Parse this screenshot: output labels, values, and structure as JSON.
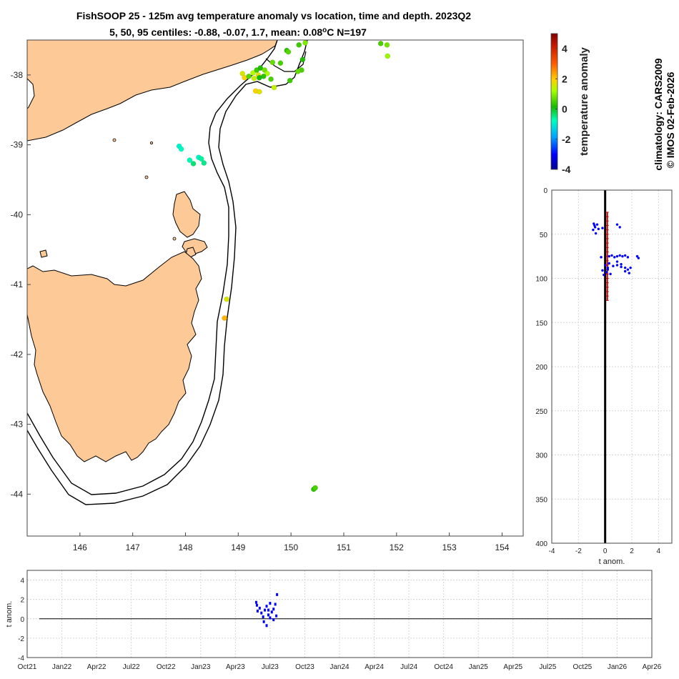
{
  "chart_data": [
    {
      "type": "scatter",
      "name": "map",
      "title": "FishSOOP 25 - 125m avg temperature anomaly vs location, time and depth. 2023Q2",
      "subtitle_prefix": "5, 50, 95 centiles: -0.88, -0.07, 1.7, mean: 0.08",
      "subtitle_degree": "o",
      "subtitle_suffix": "C N=197",
      "xlim": [
        145.0,
        154.4
      ],
      "ylim": [
        -44.6,
        -37.5
      ],
      "xticks": [
        146,
        147,
        148,
        149,
        150,
        151,
        152,
        153,
        154
      ],
      "yticks": [
        -38,
        -39,
        -40,
        -41,
        -42,
        -43,
        -44
      ],
      "colorbar": {
        "label": "temperature anomaly",
        "range": [
          -4,
          5
        ],
        "ticks": [
          4,
          2,
          0,
          -2,
          -4
        ]
      },
      "points": [
        [
          149.08,
          -37.98,
          1.6
        ],
        [
          149.12,
          -38.04,
          1.9
        ],
        [
          149.2,
          -38.02,
          0.6
        ],
        [
          149.28,
          -37.97,
          1.3
        ],
        [
          149.35,
          -37.93,
          0.4
        ],
        [
          149.42,
          -37.9,
          0.2
        ],
        [
          149.5,
          -37.93,
          0.8
        ],
        [
          149.38,
          -38.0,
          1.7
        ],
        [
          149.55,
          -37.98,
          1.2
        ],
        [
          149.48,
          -38.02,
          0.3
        ],
        [
          149.3,
          -38.05,
          1.5
        ],
        [
          149.4,
          -38.04,
          0.1
        ],
        [
          149.62,
          -38.06,
          0.5
        ],
        [
          149.68,
          -38.18,
          1.4
        ],
        [
          149.33,
          -38.23,
          1.9
        ],
        [
          149.4,
          -38.24,
          1.7
        ],
        [
          149.65,
          -37.82,
          0.7
        ],
        [
          149.8,
          -37.83,
          0.5
        ],
        [
          149.92,
          -37.65,
          0.3
        ],
        [
          149.95,
          -37.67,
          0.6
        ],
        [
          150.15,
          -37.57,
          0.4
        ],
        [
          150.27,
          -37.54,
          0.9
        ],
        [
          150.22,
          -37.78,
          0.2
        ],
        [
          150.2,
          -37.93,
          0.5
        ],
        [
          150.13,
          -37.95,
          0.7
        ],
        [
          149.98,
          -38.08,
          0.4
        ],
        [
          151.7,
          -37.55,
          0.5
        ],
        [
          151.82,
          -37.57,
          0.8
        ],
        [
          151.83,
          -37.73,
          1.1
        ],
        [
          147.88,
          -39.02,
          -0.9
        ],
        [
          147.92,
          -39.06,
          -0.8
        ],
        [
          148.08,
          -39.22,
          -0.7
        ],
        [
          148.15,
          -39.27,
          -0.4
        ],
        [
          148.25,
          -39.18,
          -0.9
        ],
        [
          148.3,
          -39.2,
          -0.6
        ],
        [
          148.35,
          -39.26,
          -0.5
        ],
        [
          148.78,
          -41.21,
          1.6
        ],
        [
          148.74,
          -41.48,
          2.2
        ],
        [
          150.43,
          -43.93,
          0.3
        ],
        [
          150.46,
          -43.91,
          0.5
        ]
      ]
    },
    {
      "type": "scatter",
      "name": "depth_profile",
      "xlabel": "t anom.",
      "xlim": [
        -4,
        5
      ],
      "ylim": [
        0,
        400
      ],
      "xticks": [
        -4,
        -2,
        0,
        2,
        4
      ],
      "yticks": [
        0,
        50,
        100,
        150,
        200,
        250,
        300,
        350,
        400
      ],
      "depth_range_bar": [
        25,
        125
      ],
      "points": [
        [
          -0.85,
          38
        ],
        [
          -0.8,
          40
        ],
        [
          -0.75,
          42
        ],
        [
          -0.9,
          45
        ],
        [
          -0.6,
          39
        ],
        [
          -0.5,
          44
        ],
        [
          -0.2,
          43
        ],
        [
          0.9,
          39
        ],
        [
          1.1,
          42
        ],
        [
          -0.7,
          49
        ],
        [
          0.3,
          75
        ],
        [
          0.5,
          74
        ],
        [
          0.7,
          76
        ],
        [
          0.9,
          75
        ],
        [
          1.1,
          74
        ],
        [
          1.3,
          75
        ],
        [
          1.5,
          74
        ],
        [
          1.7,
          76
        ],
        [
          2.4,
          75
        ],
        [
          2.5,
          77
        ],
        [
          -0.3,
          76
        ],
        [
          0.0,
          85
        ],
        [
          0.2,
          88
        ],
        [
          0.6,
          86
        ],
        [
          0.9,
          85
        ],
        [
          1.2,
          87
        ],
        [
          1.5,
          88
        ],
        [
          1.7,
          90
        ],
        [
          1.8,
          94
        ],
        [
          1.5,
          92
        ],
        [
          1.2,
          84
        ],
        [
          1.9,
          88
        ],
        [
          -0.2,
          91
        ],
        [
          0.1,
          93
        ],
        [
          0.4,
          95
        ],
        [
          0.2,
          90
        ],
        [
          -0.1,
          96
        ],
        [
          0.3,
          83
        ],
        [
          0.9,
          81
        ]
      ]
    },
    {
      "type": "scatter",
      "name": "time_series",
      "ylabel": "t anom.",
      "ylim": [
        -4,
        5
      ],
      "yticks": [
        4,
        2,
        0,
        -2,
        -4
      ],
      "xticks": [
        "Oct21",
        "Jan22",
        "Apr22",
        "Jul22",
        "Oct22",
        "Jan23",
        "Apr23",
        "Jul23",
        "Oct23",
        "Jan24",
        "Apr24",
        "Jul24",
        "Oct24",
        "Jan25",
        "Apr25",
        "Jul25",
        "Oct25",
        "Jan26",
        "Apr26"
      ],
      "points": [
        [
          6.6,
          1.7
        ],
        [
          6.62,
          1.4
        ],
        [
          6.64,
          0.8
        ],
        [
          6.7,
          1.1
        ],
        [
          6.75,
          0.6
        ],
        [
          6.8,
          0.2
        ],
        [
          6.85,
          0.9
        ],
        [
          6.9,
          1.3
        ],
        [
          6.95,
          0.4
        ],
        [
          7.0,
          1.6
        ],
        [
          7.05,
          0.7
        ],
        [
          7.1,
          1.0
        ],
        [
          7.15,
          1.5
        ],
        [
          7.18,
          0.3
        ],
        [
          7.2,
          2.5
        ],
        [
          6.82,
          -0.3
        ],
        [
          6.9,
          -0.7
        ],
        [
          7.0,
          0.1
        ],
        [
          7.1,
          -0.1
        ],
        [
          6.95,
          0.9
        ]
      ]
    }
  ],
  "credits": {
    "line1": "climatology: CARS2009",
    "line2": "© IMOS 02-Feb-2026"
  }
}
